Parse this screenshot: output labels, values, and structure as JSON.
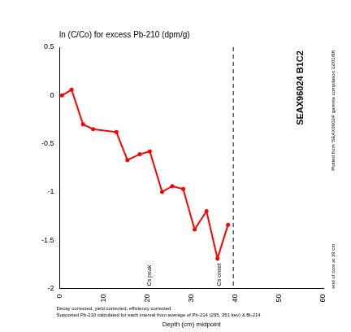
{
  "chart_data": {
    "type": "line",
    "title": "SEAX96024 B1C2",
    "x_label": "Depth (cm) midpoint",
    "x": [
      0.5,
      2.7,
      5.3,
      7.6,
      12.9,
      15.4,
      18.2,
      20.5,
      23.3,
      25.6,
      28.1,
      30.7,
      33.4,
      35.9,
      38.3
    ],
    "series": [
      {
        "name": "ln (C/Co) for excess Pb-210 (dpm/g)",
        "color": "#ff0000",
        "marker": "circle",
        "line_style": "solid",
        "values": [
          0.0,
          0.06,
          -0.3,
          -0.35,
          -0.38,
          -0.67,
          -0.61,
          -0.58,
          -1.0,
          -0.94,
          -0.97,
          -1.39,
          -1.2,
          -1.69,
          -1.34
        ]
      }
    ],
    "xlim": [
      0,
      60
    ],
    "xticks": [
      0,
      10,
      20,
      30,
      40,
      50,
      60
    ],
    "ylim": [
      -2,
      0.5
    ],
    "yticks": [
      -2,
      -1.5,
      -1,
      -0.5,
      0,
      0.5
    ],
    "grid": false,
    "legend": "top",
    "reference_line": {
      "x": 39.5,
      "line_style": "dashed"
    },
    "annotations": [
      {
        "text": "Cs peak",
        "x": 20.5,
        "y": -2
      },
      {
        "text": "Cs onset",
        "x": 36.4,
        "y": -2
      }
    ],
    "side_notes": [
      "Plotted from 'SEAX96024' gamma compilation 12/01/98",
      "end of core at 39 cm"
    ],
    "notes": [
      "Decay corrected, yield corrected, efficiency corrected",
      "Supported Pb-210 calculated for each interval from average of Pb-214 (295, 351 kev) & Bi-214"
    ]
  }
}
